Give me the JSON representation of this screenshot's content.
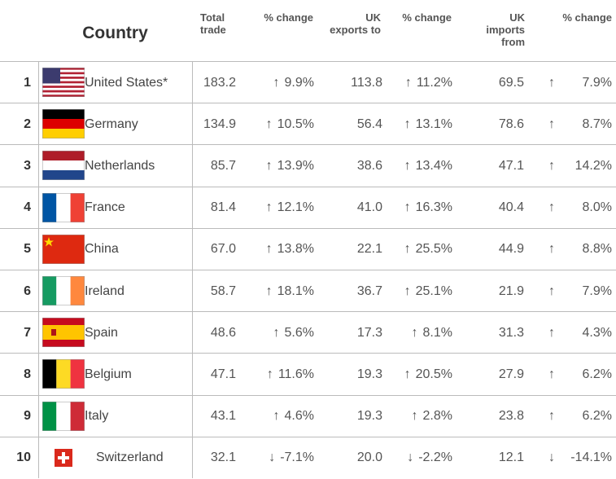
{
  "table": {
    "headers": {
      "country": "Country",
      "total": "Total trade",
      "total_change": "% change",
      "exports": "UK exports to",
      "exports_change": "% change",
      "imports": "UK imports from",
      "imports_change": "% change"
    },
    "rows": [
      {
        "rank": "1",
        "country": "United States*",
        "total": "183.2",
        "total_change": {
          "arrow": "↑",
          "value": "9.9%"
        },
        "exports": "113.8",
        "exports_change": {
          "arrow": "↑",
          "value": "11.2%"
        },
        "imports": "69.5",
        "imports_change": {
          "arrow": "↑",
          "value": "7.9%"
        }
      },
      {
        "rank": "2",
        "country": "Germany",
        "total": "134.9",
        "total_change": {
          "arrow": "↑",
          "value": "10.5%"
        },
        "exports": "56.4",
        "exports_change": {
          "arrow": "↑",
          "value": "13.1%"
        },
        "imports": "78.6",
        "imports_change": {
          "arrow": "↑",
          "value": "8.7%"
        }
      },
      {
        "rank": "3",
        "country": "Netherlands",
        "total": "85.7",
        "total_change": {
          "arrow": "↑",
          "value": "13.9%"
        },
        "exports": "38.6",
        "exports_change": {
          "arrow": "↑",
          "value": "13.4%"
        },
        "imports": "47.1",
        "imports_change": {
          "arrow": "↑",
          "value": "14.2%"
        }
      },
      {
        "rank": "4",
        "country": "France",
        "total": "81.4",
        "total_change": {
          "arrow": "↑",
          "value": "12.1%"
        },
        "exports": "41.0",
        "exports_change": {
          "arrow": "↑",
          "value": "16.3%"
        },
        "imports": "40.4",
        "imports_change": {
          "arrow": "↑",
          "value": "8.0%"
        }
      },
      {
        "rank": "5",
        "country": "China",
        "total": "67.0",
        "total_change": {
          "arrow": "↑",
          "value": "13.8%"
        },
        "exports": "22.1",
        "exports_change": {
          "arrow": "↑",
          "value": "25.5%"
        },
        "imports": "44.9",
        "imports_change": {
          "arrow": "↑",
          "value": "8.8%"
        }
      },
      {
        "rank": "6",
        "country": "Ireland",
        "total": "58.7",
        "total_change": {
          "arrow": "↑",
          "value": "18.1%"
        },
        "exports": "36.7",
        "exports_change": {
          "arrow": "↑",
          "value": "25.1%"
        },
        "imports": "21.9",
        "imports_change": {
          "arrow": "↑",
          "value": "7.9%"
        }
      },
      {
        "rank": "7",
        "country": "Spain",
        "total": "48.6",
        "total_change": {
          "arrow": "↑",
          "value": "5.6%"
        },
        "exports": "17.3",
        "exports_change": {
          "arrow": "↑",
          "value": "8.1%"
        },
        "imports": "31.3",
        "imports_change": {
          "arrow": "↑",
          "value": "4.3%"
        }
      },
      {
        "rank": "8",
        "country": "Belgium",
        "total": "47.1",
        "total_change": {
          "arrow": "↑",
          "value": "11.6%"
        },
        "exports": "19.3",
        "exports_change": {
          "arrow": "↑",
          "value": "20.5%"
        },
        "imports": "27.9",
        "imports_change": {
          "arrow": "↑",
          "value": "6.2%"
        }
      },
      {
        "rank": "9",
        "country": "Italy",
        "total": "43.1",
        "total_change": {
          "arrow": "↑",
          "value": "4.6%"
        },
        "exports": "19.3",
        "exports_change": {
          "arrow": "↑",
          "value": "2.8%"
        },
        "imports": "23.8",
        "imports_change": {
          "arrow": "↑",
          "value": "6.2%"
        }
      },
      {
        "rank": "10",
        "country": "Switzerland",
        "total": "32.1",
        "total_change": {
          "arrow": "↓",
          "value": "-7.1%"
        },
        "exports": "20.0",
        "exports_change": {
          "arrow": "↓",
          "value": "-2.2%"
        },
        "imports": "12.1",
        "imports_change": {
          "arrow": "↓",
          "value": "-14.1%"
        }
      }
    ]
  }
}
